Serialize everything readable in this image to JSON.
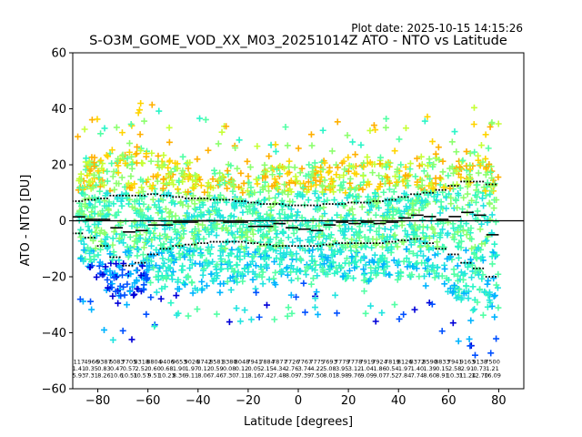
{
  "plot_date": "Plot date: 2025-10-15 14:15:26",
  "chart_data": {
    "type": "scatter",
    "title": "S-O3M_GOME_VOD_XX_M03_20251014Z ATO - NTO vs Latitude",
    "xlabel": "Latitude [degrees]",
    "ylabel": "ATO - NTO [DU]",
    "xlim": [
      -90,
      90
    ],
    "ylim": [
      -60,
      60
    ],
    "xticks": [
      -80,
      -60,
      -40,
      -20,
      0,
      20,
      40,
      60,
      80
    ],
    "yticks": [
      -60,
      -40,
      -20,
      0,
      20,
      40,
      60
    ],
    "grid": false,
    "legend": "none",
    "reference_line_y": 0,
    "point_colormap": [
      "#0000d8",
      "#0050ff",
      "#00b4ff",
      "#22e4e0",
      "#2bf5c8",
      "#52ffa5",
      "#8cff6e",
      "#c6ff36",
      "#ffd400",
      "#ffb000"
    ],
    "spread_envelope": {
      "lat": [
        -88,
        -85,
        -80,
        -75,
        -70,
        -65,
        -60,
        -55,
        -50,
        -45,
        -40,
        -35,
        -30,
        -25,
        -20,
        -15,
        -10,
        -5,
        0,
        5,
        10,
        15,
        20,
        25,
        30,
        35,
        40,
        45,
        50,
        55,
        60,
        65,
        70,
        75,
        80
      ],
      "upper": [
        20,
        22,
        24,
        26,
        28,
        29,
        29,
        27,
        24,
        23,
        23,
        22,
        22,
        21,
        21,
        21,
        22,
        22,
        22,
        22,
        23,
        23,
        23,
        24,
        24,
        23,
        23,
        22,
        23,
        24,
        25,
        27,
        28,
        27,
        22
      ],
      "lower": [
        -14,
        -17,
        -22,
        -28,
        -32,
        -30,
        -26,
        -25,
        -26,
        -27,
        -28,
        -27,
        -26,
        -25,
        -24,
        -23,
        -22,
        -22,
        -22,
        -22,
        -22,
        -23,
        -23,
        -23,
        -23,
        -22,
        -22,
        -22,
        -22,
        -24,
        -27,
        -30,
        -34,
        -38,
        -36
      ]
    },
    "mean_bias": {
      "lat": [
        -87.5,
        -82.5,
        -77.5,
        -72.5,
        -67.5,
        -62.5,
        -57.5,
        -52.5,
        -47.5,
        -42.5,
        -37.5,
        -32.5,
        -27.5,
        -22.5,
        -17.5,
        -12.5,
        -7.5,
        -2.5,
        2.5,
        7.5,
        12.5,
        17.5,
        22.5,
        27.5,
        32.5,
        37.5,
        42.5,
        47.5,
        52.5,
        57.5,
        62.5,
        67.5,
        72.5,
        77.5
      ],
      "value": [
        1.4,
        0.5,
        0.5,
        -2.5,
        -4,
        -3.5,
        -1.5,
        -1.5,
        -0.5,
        -0.5,
        0,
        0,
        -0.5,
        -0.5,
        -2,
        -2,
        -1,
        -2.5,
        -3,
        -3.5,
        -1.5,
        -0.5,
        -1,
        -0.5,
        -1,
        -0.5,
        1,
        2,
        1.5,
        0.5,
        1.5,
        3,
        2,
        -5
      ]
    },
    "upper_std": {
      "lat": [
        -87.5,
        -82.5,
        -77.5,
        -72.5,
        -67.5,
        -62.5,
        -57.5,
        -52.5,
        -47.5,
        -42.5,
        -37.5,
        -32.5,
        -27.5,
        -22.5,
        -17.5,
        -12.5,
        -7.5,
        -2.5,
        2.5,
        7.5,
        12.5,
        17.5,
        22.5,
        27.5,
        32.5,
        37.5,
        42.5,
        47.5,
        52.5,
        57.5,
        62.5,
        67.5,
        72.5,
        77.5
      ],
      "value": [
        7,
        7.5,
        8,
        9,
        9,
        9,
        9.5,
        9,
        8.5,
        8,
        8,
        7.5,
        7.5,
        7,
        6.5,
        6,
        6,
        5.5,
        5.5,
        5.5,
        6,
        6,
        6.5,
        6.5,
        7,
        7.5,
        8.5,
        9.5,
        10,
        11,
        12.5,
        14,
        14,
        13
      ]
    },
    "lower_std": {
      "lat": [
        -87.5,
        -82.5,
        -77.5,
        -72.5,
        -67.5,
        -62.5,
        -57.5,
        -52.5,
        -47.5,
        -42.5,
        -37.5,
        -32.5,
        -27.5,
        -22.5,
        -17.5,
        -12.5,
        -7.5,
        -2.5,
        2.5,
        7.5,
        12.5,
        17.5,
        22.5,
        27.5,
        32.5,
        37.5,
        42.5,
        47.5,
        52.5,
        57.5,
        62.5,
        67.5,
        72.5,
        77.5
      ],
      "value": [
        -4.5,
        -6,
        -9,
        -13,
        -16,
        -15,
        -12,
        -10,
        -9,
        -8.5,
        -8,
        -7.5,
        -7.5,
        -7.5,
        -8,
        -8.5,
        -9,
        -9,
        -9,
        -9,
        -8.5,
        -8,
        -8,
        -8,
        -8,
        -7.5,
        -7,
        -6.5,
        -8,
        -10,
        -12,
        -15,
        -17,
        -20
      ]
    },
    "counts_row": [
      "117",
      "4966",
      "9387",
      "6083",
      "7705",
      "8318",
      "8804",
      "9406",
      "9653",
      "9026",
      "8742",
      "8581",
      "8380",
      "8048",
      "7941",
      "7884",
      "7877",
      "7726",
      "7767",
      "7775",
      "7693",
      "7779",
      "7778",
      "7919",
      "7924",
      "7819",
      "8126",
      "8372",
      "8590",
      "8833",
      "7941",
      "9163",
      "9138",
      "7500"
    ],
    "means_row": [
      "1.41",
      "0.35",
      "0.83",
      "0.47",
      "0.57",
      "2.52",
      "0.60",
      "0.68",
      "1.90",
      "1.97",
      "0.12",
      "0.59",
      "0.08",
      "0.12",
      "0.05",
      "2.15",
      "4.34",
      "2.76",
      "3.74",
      "4.22",
      "5.08",
      "3.95",
      "3.12",
      "1.04",
      "1.86",
      "0.54",
      "1.97",
      "1.40",
      "1.39",
      "0.15",
      "2.58",
      "2.91",
      "0.73",
      "1.21"
    ],
    "stds_row": [
      "5.93",
      "7.31",
      "8.26",
      "10.6",
      "10.51",
      "10.57",
      "9.51",
      "10.23",
      "8.36",
      "9.11",
      "8.06",
      "7.46",
      "7.30",
      "7.11",
      "8.16",
      "7.42",
      "7.48",
      "8.09",
      "7.39",
      "7.50",
      "8.01",
      "8.98",
      "9.76",
      "9.09",
      "9.07",
      "7.52",
      "7.84",
      "7.74",
      "8.60",
      "8.91",
      "10.31",
      "11.24",
      "12.70",
      "16.09"
    ]
  }
}
